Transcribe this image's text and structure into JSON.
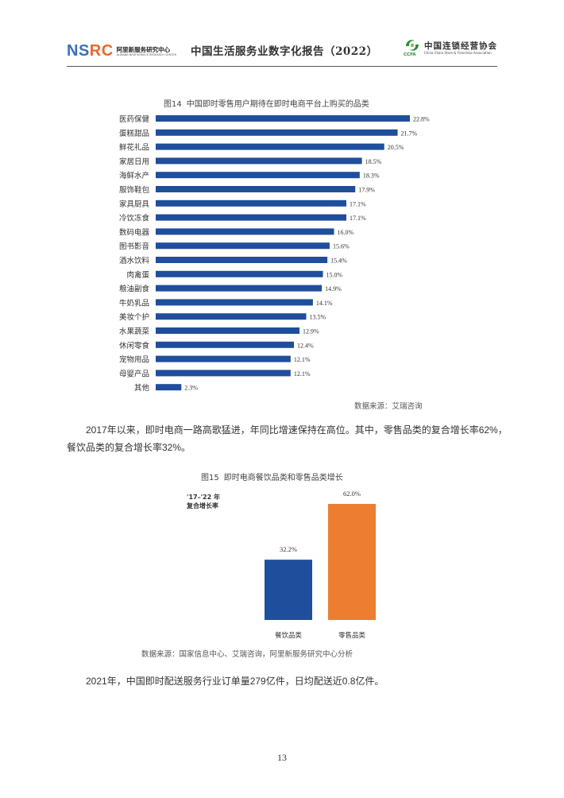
{
  "header": {
    "left_logo_main_a": "NS",
    "left_logo_main_b": "RC",
    "left_logo_cn": "阿里新服务研究中心",
    "left_logo_en": "ALIBABA NEW SERVICE RESEARCH CENTER",
    "title": "中国生活服务业数字化报告（2022）",
    "right_logo_cn": "中国连锁经营协会",
    "right_logo_en": "China Chain Store & Franchise Association",
    "right_logo_abbr": "CCFA"
  },
  "figure14": {
    "number": "图14",
    "title": "中国即时零售用户期待在即时电商平台上购买的品类",
    "source": "数据来源：艾瑞咨询"
  },
  "paragraph1": "2017年以来，即时电商一路高歌猛进，年同比增速保持在高位。其中，零售品类的复合增长率62%，餐饮品类的复合增长率32%。",
  "figure15": {
    "number": "图15",
    "title": "即时电商餐饮品类和零售品类增长",
    "cagr_label_line1": "'17–'22 年",
    "cagr_label_line2": "复合增长率",
    "source": "数据来源：国家信息中心、艾瑞咨询，阿里新服务研究中心分析"
  },
  "paragraph2": "2021年，中国即时配送服务行业订单量279亿件，日均配送近0.8亿件。",
  "page_number": "13",
  "colors": {
    "bar_blue": "#1f4e9c",
    "bar_orange": "#ed7d31"
  },
  "chart_data": [
    {
      "type": "bar",
      "orientation": "horizontal",
      "title": "中国即时零售用户期待在即时电商平台上购买的品类",
      "categories": [
        "医药保健",
        "蛋糕甜品",
        "鲜花礼品",
        "家居日用",
        "海鲜水产",
        "服饰鞋包",
        "家具厨具",
        "冷饮冻食",
        "数码电器",
        "图书影音",
        "酒水饮料",
        "肉禽蛋",
        "粮油副食",
        "牛奶乳品",
        "美妆个护",
        "水果蔬菜",
        "休闲零食",
        "宠物用品",
        "母婴产品",
        "其他"
      ],
      "values": [
        22.8,
        21.7,
        20.5,
        18.5,
        18.3,
        17.9,
        17.1,
        17.1,
        16.0,
        15.6,
        15.4,
        15.0,
        14.9,
        14.1,
        13.5,
        12.9,
        12.4,
        12.1,
        12.1,
        2.3
      ],
      "value_labels": [
        "22.8%",
        "21.7%",
        "20.5%",
        "18.5%",
        "18.3%",
        "17.9%",
        "17.1%",
        "17.1%",
        "16.0%",
        "15.6%",
        "15.4%",
        "15.0%",
        "14.9%",
        "14.1%",
        "13.5%",
        "12.9%",
        "12.4%",
        "12.1%",
        "12.1%",
        "2.3%"
      ],
      "unit": "%",
      "grid": false,
      "legend": "none"
    },
    {
      "type": "bar",
      "orientation": "vertical",
      "title": "即时电商餐饮品类和零售品类增长",
      "categories": [
        "餐饮品类",
        "零售品类"
      ],
      "values": [
        32.2,
        62.0
      ],
      "value_labels": [
        "32.2%",
        "62.0%"
      ],
      "colors": [
        "#1f4e9c",
        "#ed7d31"
      ],
      "ylabel": "'17–'22 年 复合增长率",
      "grid": false,
      "legend": "none"
    }
  ]
}
